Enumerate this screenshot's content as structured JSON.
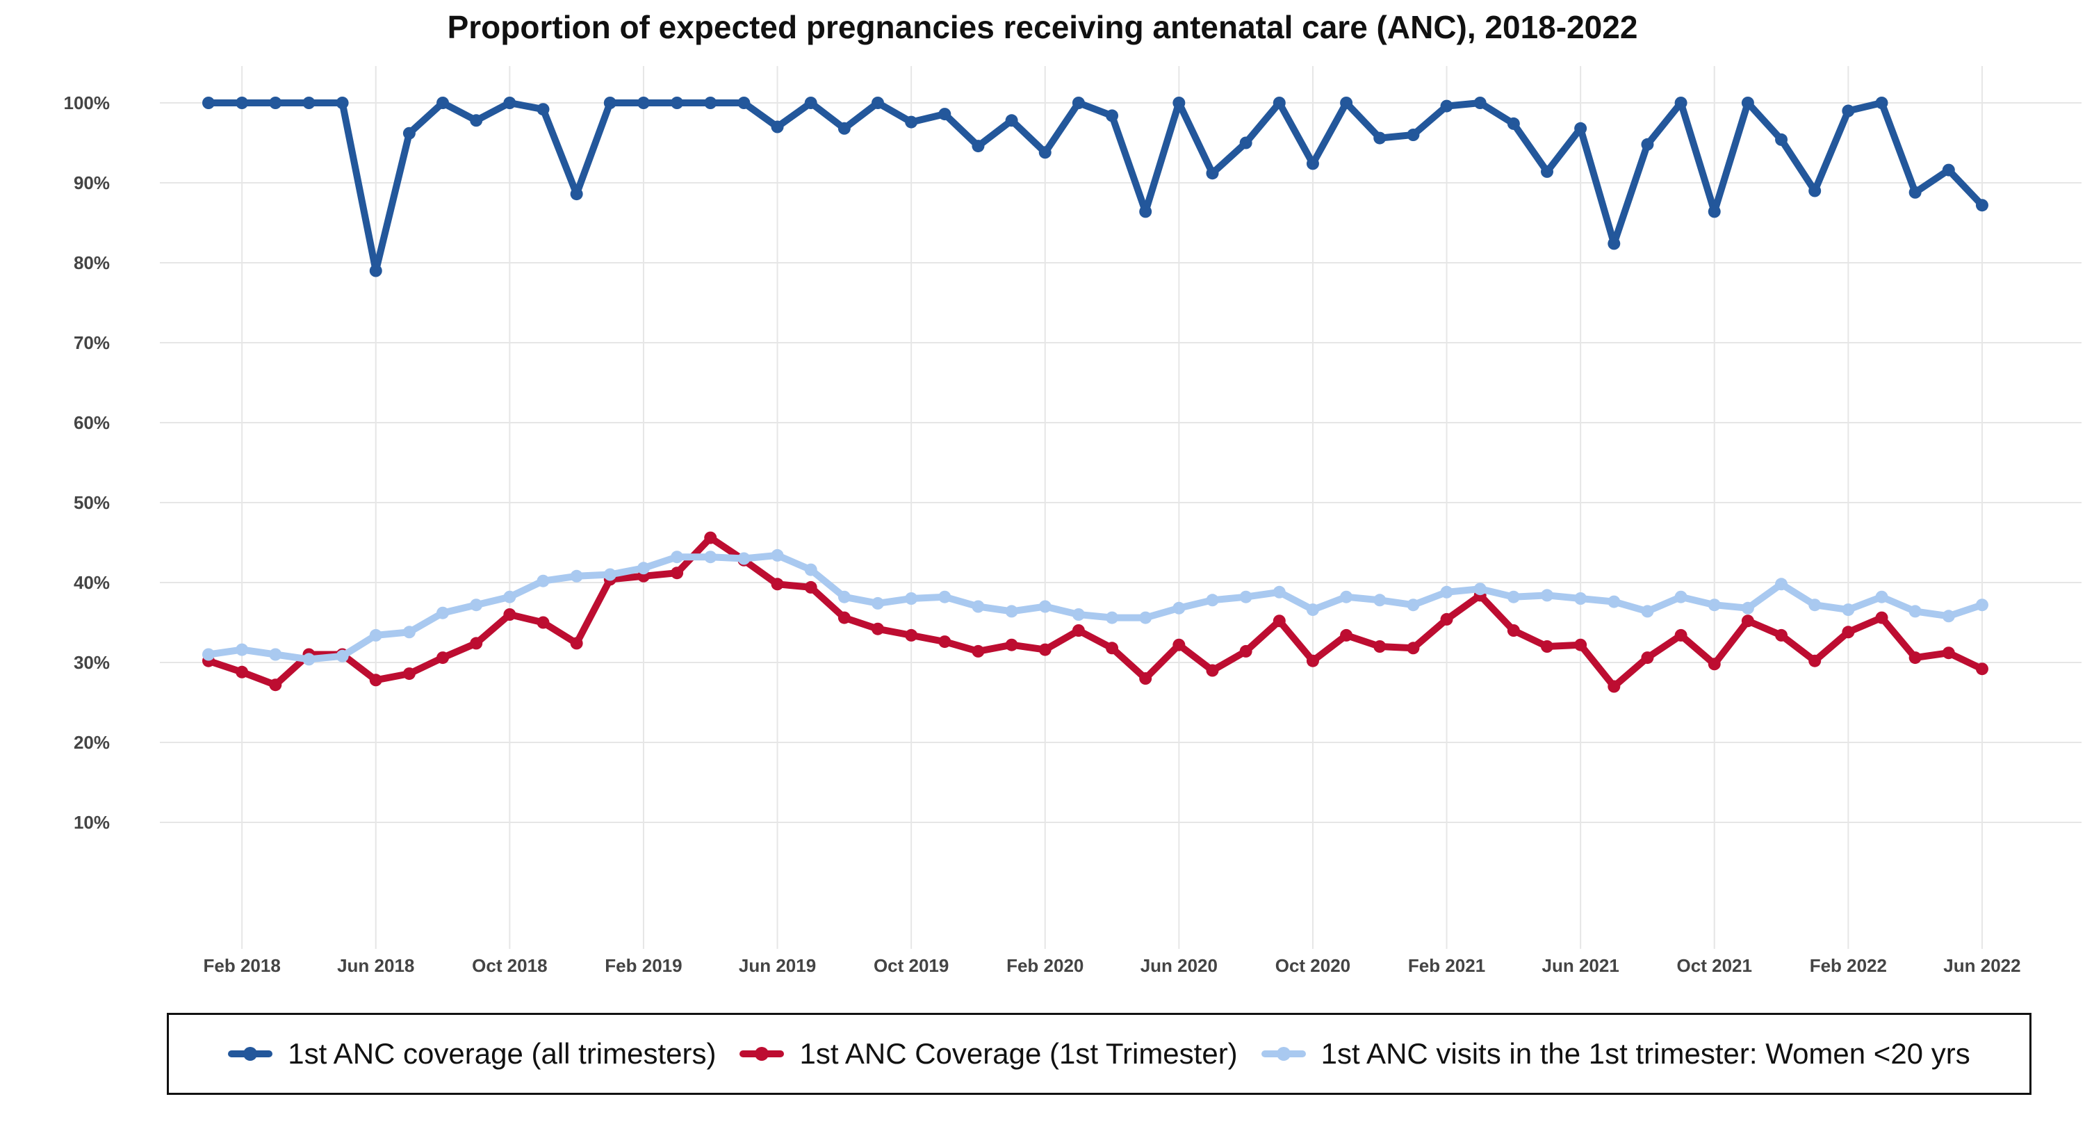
{
  "chart_data": {
    "type": "line",
    "title": "Proportion of expected pregnancies receiving antenatal care (ANC), 2018-2022",
    "xlabel": "",
    "ylabel": "",
    "ylim": [
      0,
      100
    ],
    "grid": true,
    "legend_position": "bottom",
    "y_ticks": [
      10,
      20,
      30,
      40,
      50,
      60,
      70,
      80,
      90,
      100
    ],
    "y_tick_labels": [
      "10%",
      "20%",
      "30%",
      "40%",
      "50%",
      "60%",
      "70%",
      "80%",
      "90%",
      "100%"
    ],
    "x_ticks": [
      "2018-02",
      "2018-06",
      "2018-10",
      "2019-02",
      "2019-06",
      "2019-10",
      "2020-02",
      "2020-06",
      "2020-10",
      "2021-02",
      "2021-06",
      "2021-10",
      "2022-02",
      "2022-06"
    ],
    "x_tick_labels": [
      "Feb 2018",
      "Jun 2018",
      "Oct 2018",
      "Feb 2019",
      "Jun 2019",
      "Oct 2019",
      "Feb 2020",
      "Jun 2020",
      "Oct 2020",
      "Feb 2021",
      "Jun 2021",
      "Oct 2021",
      "Feb 2022",
      "Jun 2022"
    ],
    "x": [
      "2018-01",
      "2018-02",
      "2018-03",
      "2018-04",
      "2018-05",
      "2018-06",
      "2018-07",
      "2018-08",
      "2018-09",
      "2018-10",
      "2018-11",
      "2018-12",
      "2019-01",
      "2019-02",
      "2019-03",
      "2019-04",
      "2019-05",
      "2019-06",
      "2019-07",
      "2019-08",
      "2019-09",
      "2019-10",
      "2019-11",
      "2019-12",
      "2020-01",
      "2020-02",
      "2020-03",
      "2020-04",
      "2020-05",
      "2020-06",
      "2020-07",
      "2020-08",
      "2020-09",
      "2020-10",
      "2020-11",
      "2020-12",
      "2021-01",
      "2021-02",
      "2021-03",
      "2021-04",
      "2021-05",
      "2021-06",
      "2021-07",
      "2021-08",
      "2021-09",
      "2021-10",
      "2021-11",
      "2021-12",
      "2022-01",
      "2022-02",
      "2022-03",
      "2022-04",
      "2022-05",
      "2022-06"
    ],
    "series": [
      {
        "name": "1st ANC coverage (all trimesters)",
        "color": "#23579b",
        "values": [
          100,
          100,
          100,
          100,
          100,
          79,
          96.2,
          100,
          97.8,
          100,
          99.2,
          88.6,
          100,
          100,
          100,
          100,
          100,
          97,
          100,
          96.8,
          100,
          97.6,
          98.6,
          94.6,
          97.8,
          93.8,
          100,
          98.4,
          86.4,
          100,
          91.2,
          95,
          100,
          92.4,
          100,
          95.6,
          96,
          99.6,
          100,
          97.4,
          91.4,
          96.8,
          82.4,
          94.8,
          100,
          86.4,
          100,
          95.4,
          89,
          99,
          100,
          88.8,
          91.6,
          87.2
        ]
      },
      {
        "name": "1st ANC Coverage (1st Trimester)",
        "color": "#bd0d31",
        "values": [
          30.2,
          28.8,
          27.2,
          31,
          31,
          27.8,
          28.6,
          30.6,
          32.4,
          36,
          35,
          32.4,
          40.4,
          40.8,
          41.2,
          45.6,
          42.8,
          39.8,
          39.4,
          35.6,
          34.2,
          33.4,
          32.6,
          31.4,
          32.2,
          31.6,
          34,
          31.8,
          28,
          32.2,
          29,
          31.4,
          35.2,
          30.2,
          33.4,
          32,
          31.8,
          35.4,
          38.4,
          34,
          32,
          32.2,
          27,
          30.6,
          33.4,
          29.8,
          35.2,
          33.4,
          30.2,
          33.8,
          35.6,
          30.6,
          31.2,
          29.2
        ]
      },
      {
        "name": "1st ANC visits in the 1st trimester: Women <20 yrs",
        "color": "#a9c9f0",
        "values": [
          31,
          31.6,
          31,
          30.4,
          30.8,
          33.4,
          33.8,
          36.2,
          37.2,
          38.2,
          40.2,
          40.8,
          41,
          41.8,
          43.2,
          43.2,
          43,
          43.4,
          41.6,
          38.2,
          37.4,
          38,
          38.2,
          37,
          36.4,
          37,
          36,
          35.6,
          35.6,
          36.8,
          37.8,
          38.2,
          38.8,
          36.6,
          38.2,
          37.8,
          37.2,
          38.8,
          39.2,
          38.2,
          38.4,
          38,
          37.6,
          36.4,
          38.2,
          37.2,
          36.8,
          39.8,
          37.2,
          36.6,
          38.2,
          36.4,
          35.8,
          37.2
        ]
      }
    ]
  }
}
